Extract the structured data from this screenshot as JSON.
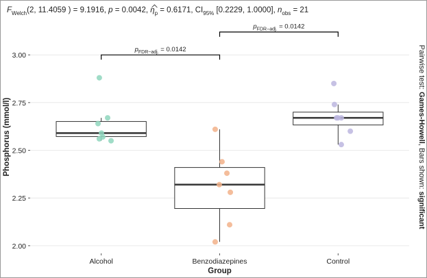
{
  "chart_data": {
    "type": "box",
    "subtitle_parts": [
      "F",
      "Welch",
      "(2, 11.4059 ) = 9.1916, ",
      "p",
      " = 0.0042, ",
      "η",
      "p",
      " = 0.6171, CI",
      "95%",
      " [0.2229, 1.0000], ",
      "n",
      "obs",
      " = 21"
    ],
    "x_label": "Group",
    "y_label": "Phosphorus (mmol/l)",
    "caption_parts": [
      "Pairwise test: ",
      "Games-Howell",
      ", Bars shown: ",
      "significant"
    ],
    "categories": [
      "Alcohol",
      "Benzodiazepines",
      "Control"
    ],
    "xlim": [
      0.4,
      3.6
    ],
    "ylim": [
      1.96,
      3.18
    ],
    "yticks": [
      {
        "value": 2,
        "label": "2.00"
      },
      {
        "value": 2.25,
        "label": "2.25"
      },
      {
        "value": 2.5,
        "label": "2.50"
      },
      {
        "value": 2.75,
        "label": "2.75"
      },
      {
        "value": 3,
        "label": "3.00"
      }
    ],
    "grid": true,
    "boxes": [
      {
        "low": 2.55,
        "q1": 2.572,
        "median": 2.59,
        "q3": 2.651,
        "high": 2.67
      },
      {
        "low": 2.02,
        "q1": 2.195,
        "median": 2.32,
        "q3": 2.41,
        "high": 2.61
      },
      {
        "low": 2.53,
        "q1": 2.633,
        "median": 2.67,
        "q3": 2.7,
        "high": 2.74
      }
    ],
    "series": [
      {
        "name": "Alcohol",
        "color": "#8fd6bd",
        "x": [
          0.984,
          1.054,
          0.973,
          1.002,
          1.013,
          0.984,
          1.083
        ],
        "values": [
          2.88,
          2.67,
          2.64,
          2.59,
          2.57,
          2.56,
          2.55
        ]
      },
      {
        "name": "Benzodiazepines",
        "color": "#f2b28a",
        "x": [
          1.962,
          2.02,
          2.061,
          1.997,
          2.09,
          2.084,
          1.962
        ],
        "values": [
          2.61,
          2.44,
          2.38,
          2.32,
          2.28,
          2.11,
          2.02
        ]
      },
      {
        "name": "Control",
        "color": "#bcb6df",
        "x": [
          2.964,
          2.969,
          2.987,
          2.998,
          3.027,
          3.103,
          3.027
        ],
        "values": [
          2.85,
          2.74,
          2.67,
          2.67,
          2.67,
          2.6,
          2.53
        ]
      }
    ],
    "comparisons": [
      {
        "from": 1,
        "to": 2,
        "y": 3.0,
        "label": [
          "p",
          "FDR−adj.",
          " = 0.0142"
        ]
      },
      {
        "from": 2,
        "to": 3,
        "y": 3.12,
        "label": [
          "p",
          "FDR−adj.",
          " = 0.0142"
        ]
      }
    ]
  }
}
